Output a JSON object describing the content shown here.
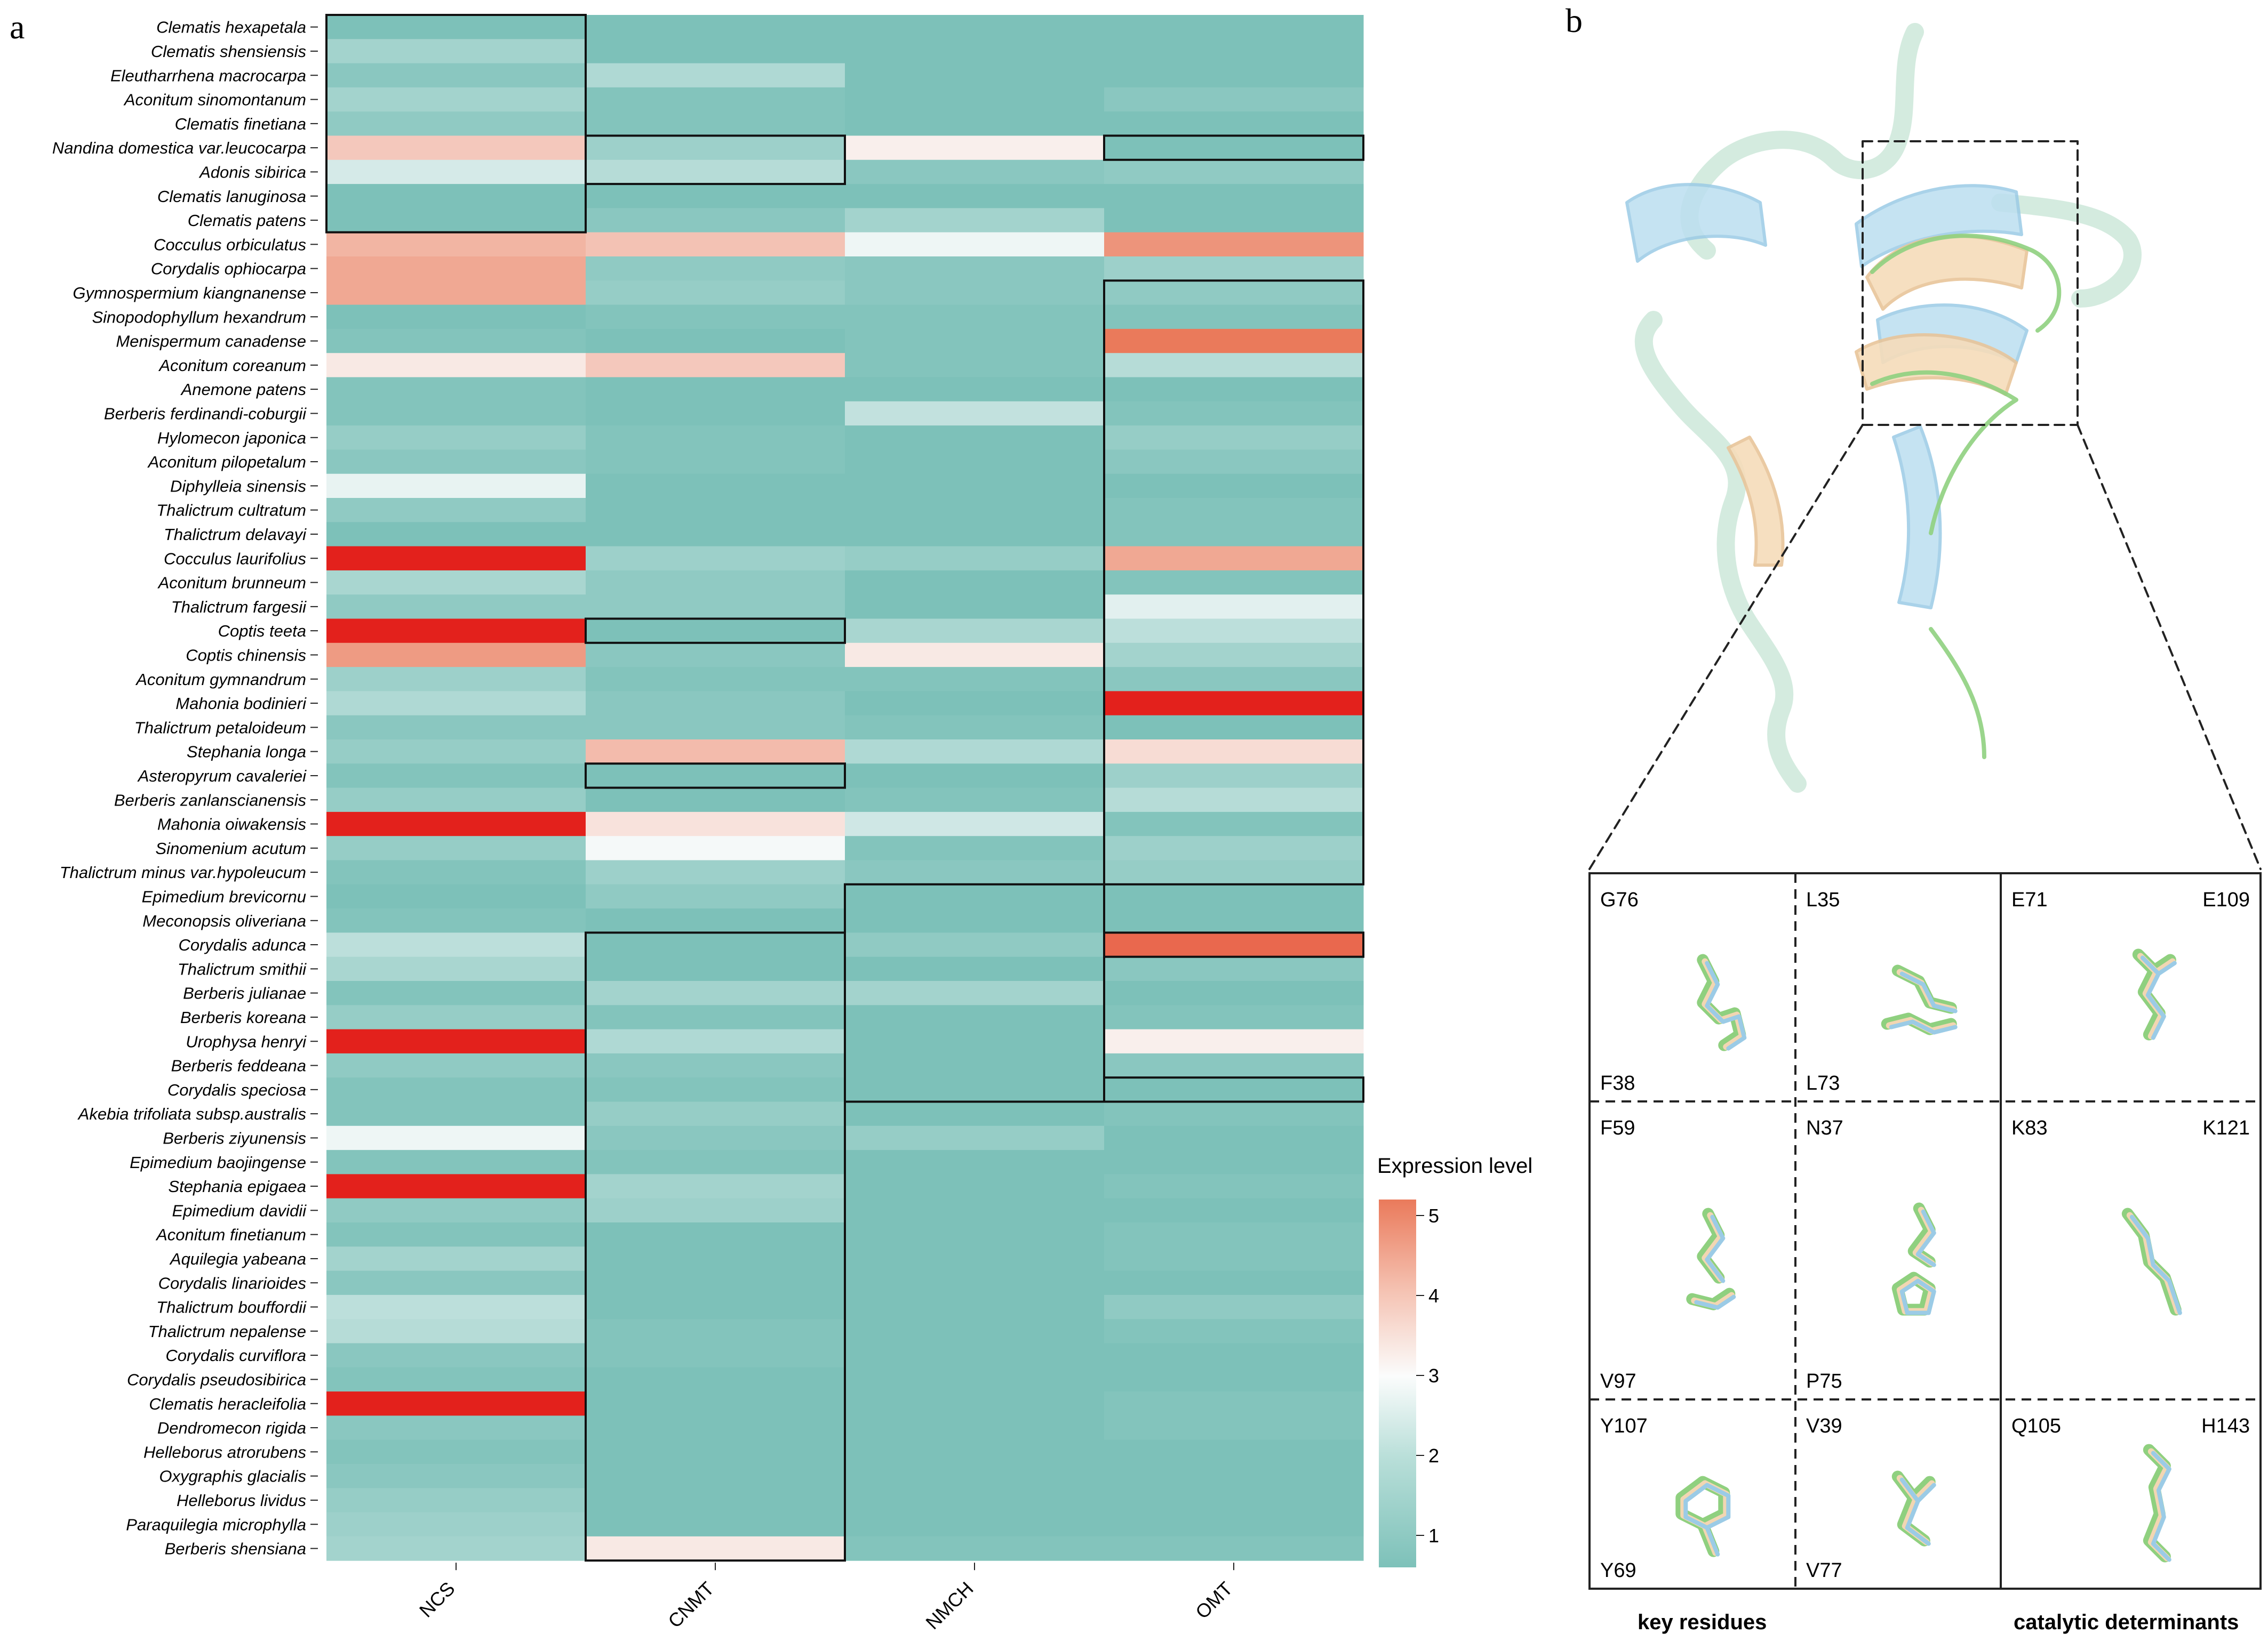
{
  "panels": {
    "a_label": "a",
    "b_label": "b"
  },
  "chart_data": {
    "type": "heatmap",
    "title": "",
    "columns": [
      "NCS",
      "CNMT",
      "NMCH",
      "OMT"
    ],
    "rows": [
      "Clematis hexapetala",
      "Clematis shensiensis",
      "Eleutharrhena macrocarpa",
      "Aconitum sinomontanum",
      "Clematis finetiana",
      "Nandina domestica var.leucocarpa",
      "Adonis sibirica",
      "Clematis lanuginosa",
      "Clematis patens",
      "Cocculus orbiculatus",
      "Corydalis ophiocarpa",
      "Gymnospermium kiangnanense",
      "Sinopodophyllum hexandrum",
      "Menispermum canadense",
      "Aconitum coreanum",
      "Anemone patens",
      "Berberis ferdinandi-coburgii",
      "Hylomecon japonica",
      "Aconitum pilopetalum",
      "Diphylleia sinensis",
      "Thalictrum cultratum",
      "Thalictrum delavayi",
      "Cocculus laurifolius",
      "Aconitum brunneum",
      "Thalictrum fargesii",
      "Coptis teeta",
      "Coptis chinensis",
      "Aconitum gymnandrum",
      "Mahonia bodinieri",
      "Thalictrum petaloideum",
      "Stephania longa",
      "Asteropyrum cavaleriei",
      "Berberis zanlanscianensis",
      "Mahonia oiwakensis",
      "Sinomenium acutum",
      "Thalictrum minus var.hypoleucum",
      "Epimedium brevicornu",
      "Meconopsis oliveriana",
      "Corydalis adunca",
      "Thalictrum smithii",
      "Berberis julianae",
      "Berberis koreana",
      "Urophysa henryi",
      "Berberis feddeana",
      "Corydalis speciosa",
      "Akebia trifoliata subsp.australis",
      "Berberis ziyunensis",
      "Epimedium baojingense",
      "Stephania epigaea",
      "Epimedium davidii",
      "Aconitum finetianum",
      "Aquilegia yabeana",
      "Corydalis linarioides",
      "Thalictrum bouffordii",
      "Thalictrum nepalense",
      "Corydalis curviflora",
      "Corydalis pseudosibirica",
      "Clematis heracleifolia",
      "Dendromecon rigida",
      "Helleborus atrorubens",
      "Oxygraphis glacialis",
      "Helleborus lividus",
      "Paraquilegia microphylla",
      "Berberis shensiana"
    ],
    "values": [
      [
        1.0,
        1.0,
        1.0,
        1.0
      ],
      [
        1.6,
        1.0,
        1.0,
        1.0
      ],
      [
        1.2,
        1.8,
        1.0,
        1.0
      ],
      [
        1.6,
        1.1,
        1.0,
        1.2
      ],
      [
        1.3,
        1.1,
        1.0,
        1.0
      ],
      [
        3.8,
        1.5,
        3.2,
        1.0
      ],
      [
        2.4,
        1.9,
        1.2,
        1.3
      ],
      [
        1.0,
        1.0,
        1.0,
        1.0
      ],
      [
        1.0,
        1.2,
        1.6,
        1.0
      ],
      [
        4.1,
        3.9,
        2.8,
        4.6
      ],
      [
        4.3,
        1.3,
        1.2,
        1.5
      ],
      [
        4.3,
        1.4,
        1.2,
        1.3
      ],
      [
        1.0,
        1.1,
        1.1,
        1.1
      ],
      [
        1.1,
        1.0,
        1.1,
        5.0
      ],
      [
        3.3,
        3.8,
        1.1,
        1.9
      ],
      [
        1.1,
        1.0,
        1.0,
        1.0
      ],
      [
        1.1,
        1.0,
        2.1,
        1.1
      ],
      [
        1.4,
        1.1,
        1.0,
        1.4
      ],
      [
        1.2,
        1.1,
        1.0,
        1.2
      ],
      [
        2.7,
        1.0,
        1.0,
        1.0
      ],
      [
        1.3,
        1.0,
        1.0,
        1.1
      ],
      [
        1.0,
        1.0,
        1.0,
        1.1
      ],
      [
        6.0,
        1.5,
        1.4,
        4.3
      ],
      [
        1.7,
        1.3,
        1.0,
        1.1
      ],
      [
        1.3,
        1.3,
        1.0,
        2.6
      ],
      [
        6.2,
        1.0,
        1.7,
        2.0
      ],
      [
        4.5,
        1.2,
        3.3,
        1.6
      ],
      [
        1.5,
        1.1,
        1.1,
        1.2
      ],
      [
        1.8,
        1.2,
        1.0,
        6.0
      ],
      [
        1.2,
        1.2,
        1.1,
        1.0
      ],
      [
        1.4,
        4.0,
        1.8,
        3.5
      ],
      [
        1.1,
        1.0,
        1.0,
        1.5
      ],
      [
        1.4,
        1.0,
        1.1,
        1.9
      ],
      [
        6.0,
        3.4,
        2.3,
        1.1
      ],
      [
        1.4,
        2.9,
        1.1,
        1.5
      ],
      [
        1.1,
        1.5,
        1.2,
        1.4
      ],
      [
        1.0,
        1.3,
        1.0,
        1.0
      ],
      [
        1.1,
        1.0,
        1.0,
        1.0
      ],
      [
        2.0,
        1.0,
        1.3,
        5.2
      ],
      [
        1.7,
        1.0,
        1.0,
        1.2
      ],
      [
        1.1,
        1.6,
        1.6,
        1.0
      ],
      [
        1.4,
        1.1,
        1.0,
        1.1
      ],
      [
        6.0,
        1.8,
        1.0,
        3.2
      ],
      [
        1.3,
        1.2,
        1.0,
        1.2
      ],
      [
        1.1,
        1.1,
        1.0,
        1.0
      ],
      [
        1.1,
        1.4,
        1.0,
        1.1
      ],
      [
        2.8,
        1.2,
        1.4,
        1.0
      ],
      [
        1.1,
        1.1,
        1.0,
        1.0
      ],
      [
        6.0,
        1.6,
        1.0,
        1.1
      ],
      [
        1.3,
        1.5,
        1.0,
        1.0
      ],
      [
        1.1,
        1.0,
        1.0,
        1.1
      ],
      [
        1.6,
        1.0,
        1.0,
        1.1
      ],
      [
        1.2,
        1.0,
        1.0,
        1.0
      ],
      [
        2.0,
        1.0,
        1.0,
        1.3
      ],
      [
        1.9,
        1.1,
        1.0,
        1.1
      ],
      [
        1.2,
        1.1,
        1.0,
        1.0
      ],
      [
        1.1,
        1.0,
        1.0,
        1.0
      ],
      [
        6.0,
        1.0,
        1.0,
        1.1
      ],
      [
        1.2,
        1.0,
        1.0,
        1.1
      ],
      [
        1.1,
        1.0,
        1.0,
        1.0
      ],
      [
        1.2,
        1.0,
        1.0,
        1.0
      ],
      [
        1.4,
        1.0,
        1.0,
        1.0
      ],
      [
        1.5,
        1.0,
        1.0,
        1.0
      ],
      [
        1.6,
        3.3,
        1.1,
        1.1
      ]
    ],
    "highlight_boxes": [
      {
        "col": 0,
        "rows": [
          0,
          8
        ]
      },
      {
        "col": 1,
        "rows": [
          5,
          6
        ]
      },
      {
        "col": 3,
        "rows": [
          5,
          5
        ]
      },
      {
        "col": 3,
        "rows": [
          11,
          35
        ]
      },
      {
        "col": 1,
        "rows": [
          25,
          25
        ]
      },
      {
        "col": 1,
        "rows": [
          31,
          31
        ]
      },
      {
        "col": 2,
        "rows": [
          36,
          44
        ]
      },
      {
        "col": 3,
        "rows": [
          38,
          38
        ]
      },
      {
        "col": 3,
        "rows": [
          44,
          44
        ]
      },
      {
        "col": 1,
        "rows": [
          38,
          63
        ]
      }
    ],
    "colorbar": {
      "title": "Expression level",
      "ticks": [
        "1",
        "2",
        "3",
        "4",
        "5"
      ],
      "range": [
        0.6,
        5.2
      ],
      "colors": {
        "low": "#7dc1b9",
        "mid": "#fbfcfc",
        "high": "#ea7a5b",
        "max": "#e3211c"
      }
    }
  },
  "structure_panel": {
    "colors": {
      "blue": "#9bcbe6",
      "tan": "#f2d6b2",
      "green": "#8fd07f",
      "mint": "#cfe9dc"
    },
    "insets": [
      {
        "top_left": "G76",
        "bottom_left": "F38"
      },
      {
        "top_left": "L35",
        "bottom_left": "L73"
      },
      {
        "top_left": "E71",
        "top_right": "E109"
      },
      {
        "top_left": "F59",
        "bottom_left": "V97"
      },
      {
        "top_left": "N37",
        "bottom_left": "P75"
      },
      {
        "top_left": "K83",
        "top_right": "K121"
      },
      {
        "top_left": "Y107",
        "bottom_left": "Y69"
      },
      {
        "top_left": "V39",
        "bottom_left": "V77"
      },
      {
        "top_left": "Q105",
        "top_right": "H143"
      }
    ],
    "captions": {
      "key": "key residues",
      "catalytic": "catalytic determinants"
    }
  }
}
